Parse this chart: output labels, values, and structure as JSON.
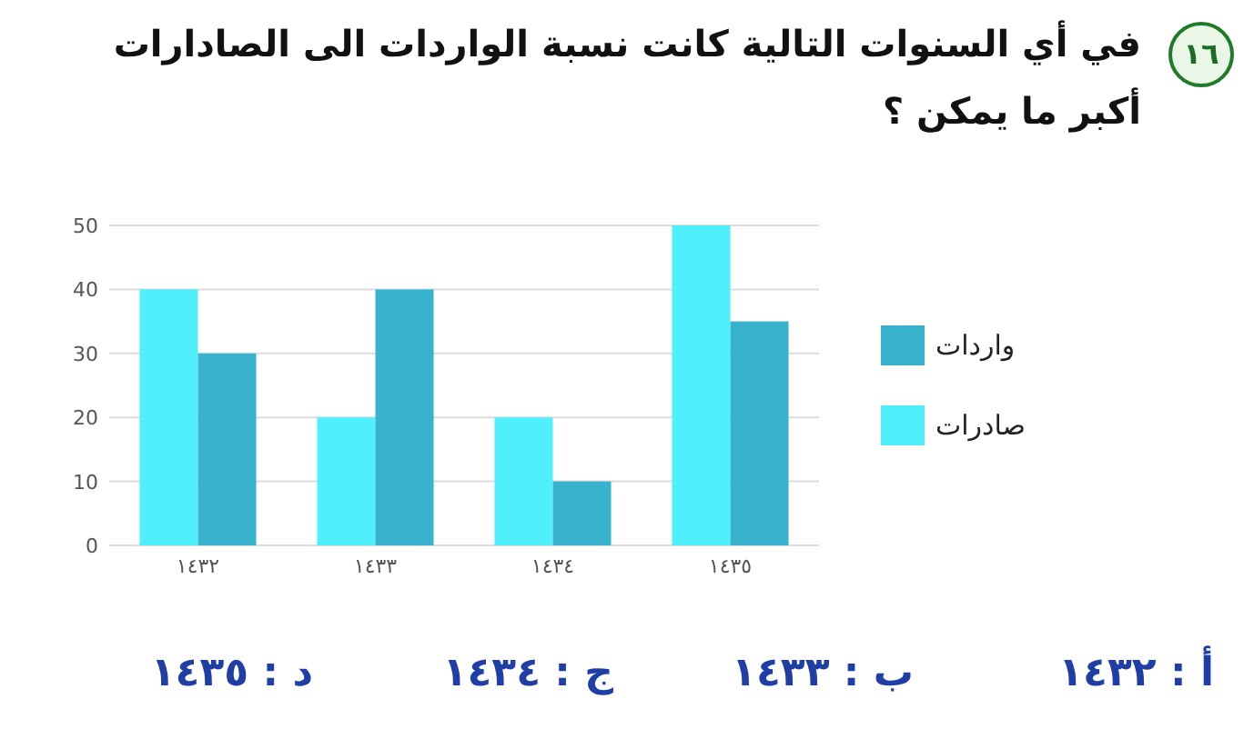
{
  "chart_data": {
    "type": "bar",
    "title": "في أي السنوات التالية كانت نسبة الواردات الى الصادارات أكبر ما يمكن ؟",
    "categories": [
      "١٤٣٢",
      "١٤٣٣",
      "١٤٣٤",
      "١٤٣٥"
    ],
    "series": [
      {
        "name": "صادرات",
        "color": "#4ff0fb",
        "values": [
          40,
          20,
          20,
          50
        ]
      },
      {
        "name": "واردات",
        "color": "#38b2cd",
        "values": [
          30,
          40,
          10,
          35
        ]
      }
    ],
    "ylim": [
      0,
      50
    ],
    "yticks": [
      0,
      10,
      20,
      30,
      40,
      50
    ],
    "grid": "y",
    "legend": "right",
    "annotations": [
      "١٦",
      "أ : ١٤٣٢",
      "ب : ١٤٣٣",
      "ج : ١٤٣٤",
      "د : ١٤٣٥"
    ]
  }
}
